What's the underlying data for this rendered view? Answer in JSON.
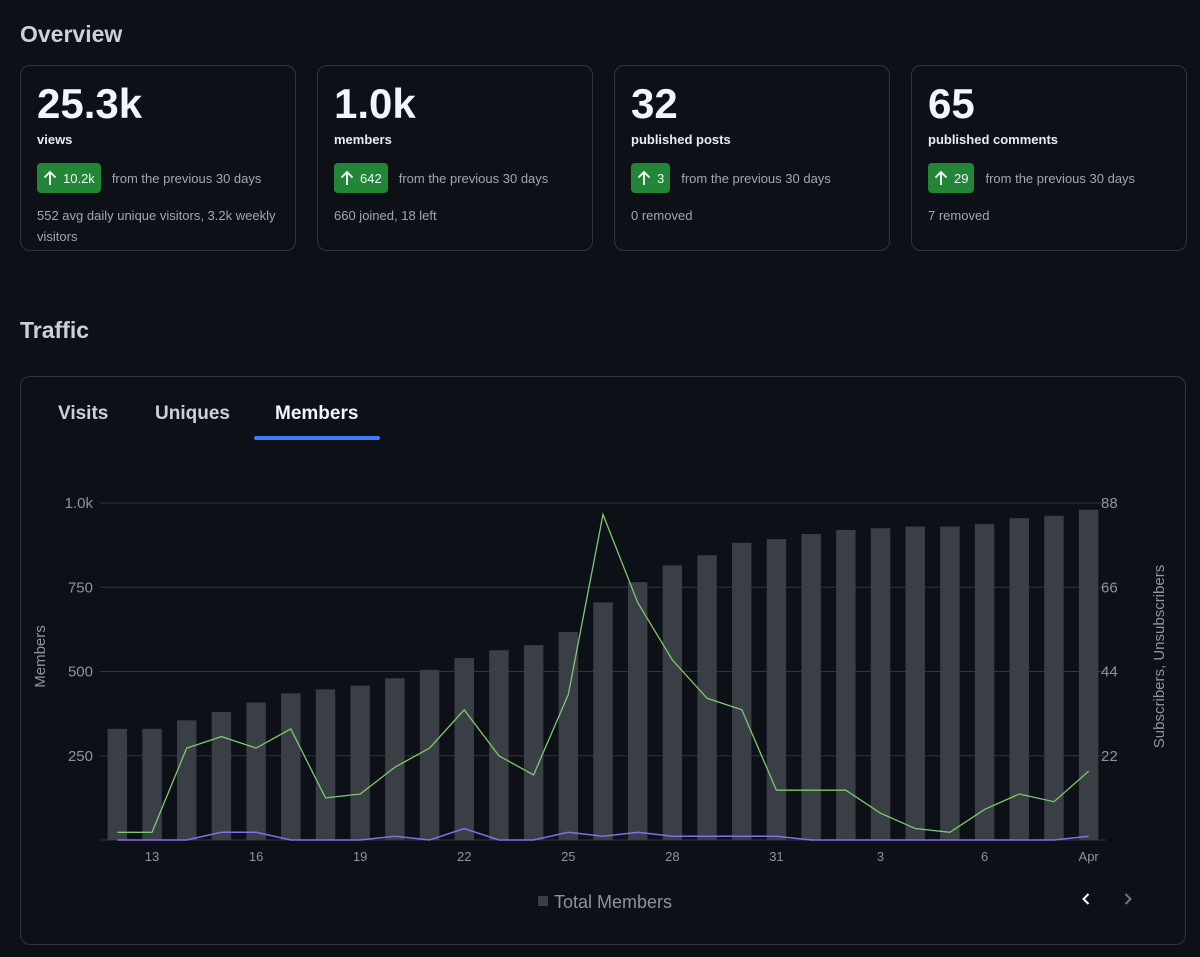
{
  "overview": {
    "title": "Overview",
    "cards": [
      {
        "value": "25.3k",
        "label": "views",
        "delta": "10.2k",
        "from": "from the previous 30 days",
        "note": "552 avg daily unique visitors, 3.2k weekly visitors"
      },
      {
        "value": "1.0k",
        "label": "members",
        "delta": "642",
        "from": "from the previous 30 days",
        "note": "660 joined, 18 left"
      },
      {
        "value": "32",
        "label": "published posts",
        "delta": "3",
        "from": "from the previous 30 days",
        "note": "0 removed"
      },
      {
        "value": "65",
        "label": "published comments",
        "delta": "29",
        "from": "from the previous 30 days",
        "note": "7 removed"
      }
    ]
  },
  "traffic": {
    "title": "Traffic",
    "tabs": [
      {
        "label": "Visits",
        "active": false
      },
      {
        "label": "Uniques",
        "active": false
      },
      {
        "label": "Members",
        "active": true
      }
    ],
    "prev_icon": "chevron-left-icon",
    "next_icon": "chevron-right-icon"
  },
  "colors": {
    "bar": "#3a3f45",
    "subscribers_line": "#7bc96f",
    "unsubscribers_line": "#7b73e8",
    "tab_active_underline": "#3d7bfd",
    "badge": "#238636"
  },
  "chart_data": {
    "type": "bar",
    "categories": [
      "12",
      "13",
      "14",
      "15",
      "16",
      "17",
      "18",
      "19",
      "20",
      "21",
      "22",
      "23",
      "24",
      "25",
      "26",
      "27",
      "28",
      "29",
      "30",
      "31",
      "1",
      "2",
      "3",
      "4",
      "5",
      "6",
      "7",
      "8",
      "Apr"
    ],
    "x_tick_labels": [
      "13",
      "16",
      "19",
      "22",
      "25",
      "28",
      "31",
      "3",
      "6",
      "Apr"
    ],
    "series": [
      {
        "name": "Total Members",
        "axis": "left",
        "type": "bar",
        "values": [
          330,
          330,
          355,
          380,
          408,
          435,
          447,
          458,
          480,
          505,
          540,
          563,
          578,
          617,
          705,
          765,
          815,
          845,
          882,
          893,
          908,
          920,
          925,
          930,
          930,
          938,
          955,
          962,
          980
        ]
      },
      {
        "axis": "right",
        "type": "line",
        "values": [
          2,
          2,
          24,
          27,
          24,
          29,
          11,
          12,
          19,
          24,
          34,
          22,
          17,
          38,
          85,
          62,
          47,
          37,
          34,
          13,
          13,
          13,
          7,
          3,
          2,
          8,
          12,
          10,
          18
        ]
      },
      {
        "axis": "right",
        "type": "line",
        "values": [
          0,
          0,
          0,
          2,
          2,
          0,
          0,
          0,
          1,
          0,
          3,
          0,
          0,
          2,
          1,
          2,
          1,
          1,
          1,
          1,
          0,
          0,
          0,
          0,
          0,
          0,
          0,
          0,
          1
        ]
      }
    ],
    "ylabel": "Members",
    "y2label": "Subscribers, Unsubscribers",
    "ylim": [
      0,
      1000
    ],
    "y_ticks": [
      250,
      500,
      750,
      1000
    ],
    "y_tick_labels": [
      "250",
      "500",
      "750",
      "1.0k"
    ],
    "y2lim": [
      0,
      88
    ],
    "y2_ticks": [
      22,
      44,
      66,
      88
    ],
    "y2_tick_labels": [
      "22",
      "44",
      "66",
      "88"
    ],
    "grid": true,
    "legend": {
      "position": "bottom-center",
      "entries": [
        "Total Members"
      ]
    }
  }
}
